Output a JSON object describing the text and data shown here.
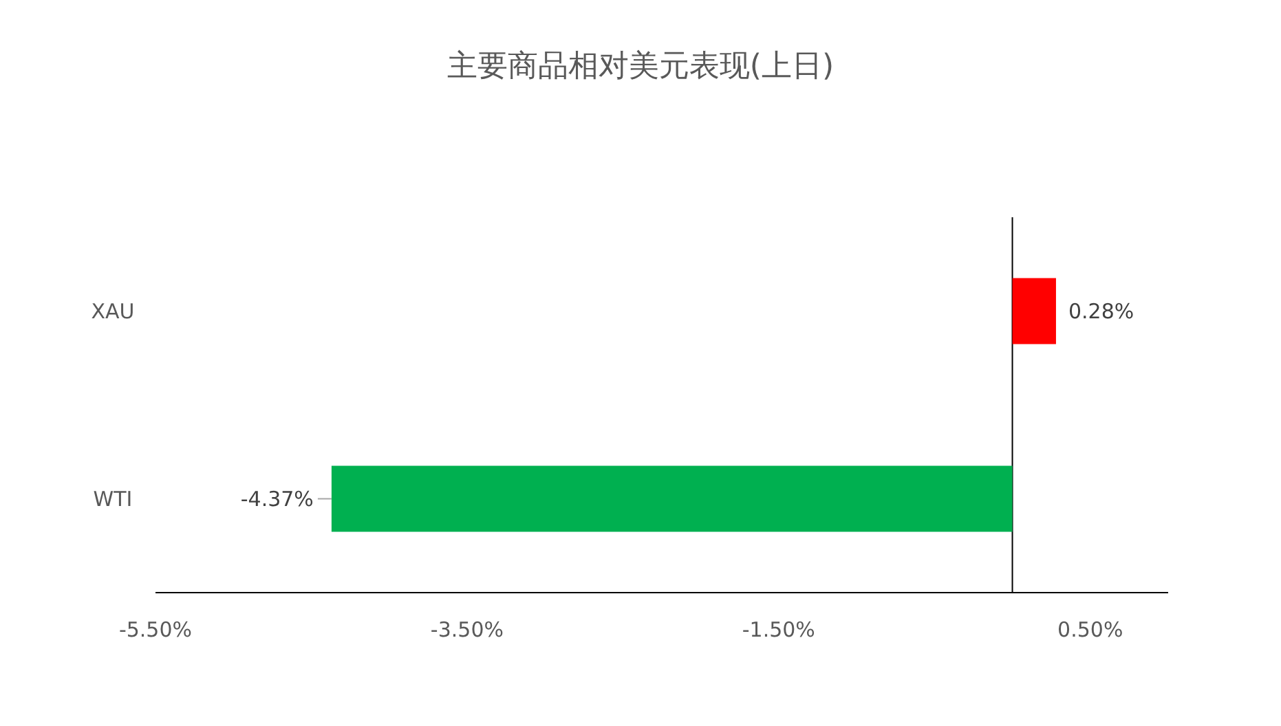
{
  "chart_data": {
    "type": "bar",
    "orientation": "horizontal",
    "title": "主要商品相对美元表现(上日)",
    "categories": [
      "XAU",
      "WTI"
    ],
    "values": [
      0.28,
      -4.37
    ],
    "colors": [
      "#ff0000",
      "#00b050"
    ],
    "value_labels": [
      "0.28%",
      "-4.37%"
    ],
    "xlim": [
      -5.5,
      1.0
    ],
    "xticks": [
      {
        "value": -5.5,
        "label": "-5.50%"
      },
      {
        "value": -3.5,
        "label": "-3.50%"
      },
      {
        "value": -1.5,
        "label": "-1.50%"
      },
      {
        "value": 0.5,
        "label": "0.50%"
      }
    ]
  }
}
